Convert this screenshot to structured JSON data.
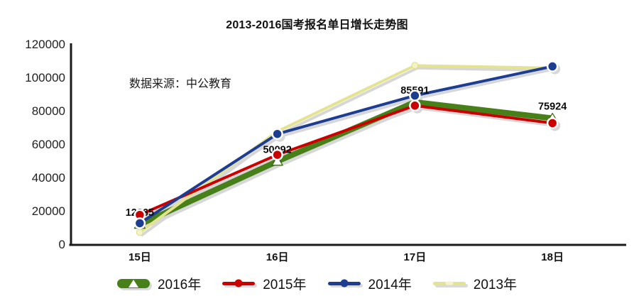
{
  "page": {
    "background": "#ffffff"
  },
  "chart_data": {
    "type": "line",
    "title": "2013-2016国考报名单日增长走势图",
    "source_note": "数据来源：中公教育",
    "categories": [
      "15日",
      "16日",
      "17日",
      "18日"
    ],
    "yticks": [
      "0",
      "20000",
      "40000",
      "60000",
      "80000",
      "100000",
      "120000"
    ],
    "ylim": [
      0,
      120000
    ],
    "grid": false,
    "legend_position": "bottom",
    "axis_color": "#1a1a1a",
    "shadow_color": "#d7d7d7",
    "data_label_values": [
      "12265",
      "50092",
      "85591",
      "75924"
    ],
    "series": [
      {
        "name": "2016年",
        "color": "#478018",
        "marker": "white-triangle",
        "line_width": 8,
        "values": [
          12265,
          50092,
          85591,
          75924
        ],
        "labeled": true
      },
      {
        "name": "2015年",
        "color": "#cc0000",
        "marker": "circle",
        "line_width": 4,
        "values": [
          18000,
          54000,
          83500,
          73000
        ],
        "labeled": false
      },
      {
        "name": "2014年",
        "color": "#1d3d92",
        "marker": "circle",
        "line_width": 4,
        "values": [
          13000,
          66500,
          89500,
          107000
        ],
        "labeled": false
      },
      {
        "name": "2013年",
        "color": "#e4e490",
        "marker": "light-dot",
        "line_width": 4,
        "values": [
          7500,
          68000,
          107500,
          106000
        ],
        "labeled": false
      }
    ]
  }
}
